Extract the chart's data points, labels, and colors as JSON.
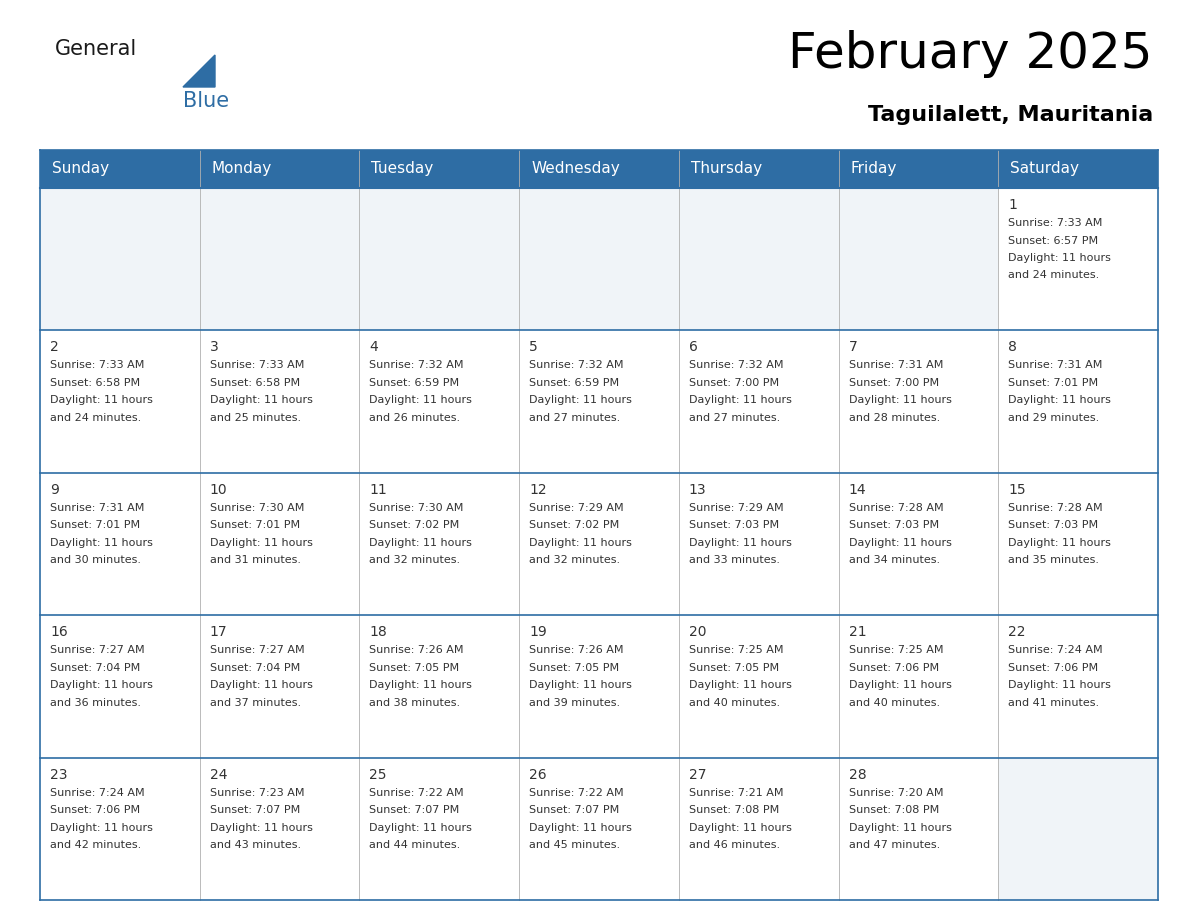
{
  "title": "February 2025",
  "subtitle": "Taguilalett, Mauritania",
  "header_bg_color": "#2e6da4",
  "header_text_color": "#ffffff",
  "cell_bg_white": "#ffffff",
  "cell_bg_light": "#f0f4f8",
  "border_color": "#2e6da4",
  "grid_color": "#b0b0b0",
  "text_color": "#333333",
  "days_of_week": [
    "Sunday",
    "Monday",
    "Tuesday",
    "Wednesday",
    "Thursday",
    "Friday",
    "Saturday"
  ],
  "logo_general_color": "#1a1a1a",
  "logo_blue_color": "#2e6da4",
  "calendar_data": [
    [
      null,
      null,
      null,
      null,
      null,
      null,
      {
        "day": "1",
        "sunrise": "7:33 AM",
        "sunset": "6:57 PM",
        "daylight_line1": "11 hours",
        "daylight_line2": "and 24 minutes."
      }
    ],
    [
      {
        "day": "2",
        "sunrise": "7:33 AM",
        "sunset": "6:58 PM",
        "daylight_line1": "11 hours",
        "daylight_line2": "and 24 minutes."
      },
      {
        "day": "3",
        "sunrise": "7:33 AM",
        "sunset": "6:58 PM",
        "daylight_line1": "11 hours",
        "daylight_line2": "and 25 minutes."
      },
      {
        "day": "4",
        "sunrise": "7:32 AM",
        "sunset": "6:59 PM",
        "daylight_line1": "11 hours",
        "daylight_line2": "and 26 minutes."
      },
      {
        "day": "5",
        "sunrise": "7:32 AM",
        "sunset": "6:59 PM",
        "daylight_line1": "11 hours",
        "daylight_line2": "and 27 minutes."
      },
      {
        "day": "6",
        "sunrise": "7:32 AM",
        "sunset": "7:00 PM",
        "daylight_line1": "11 hours",
        "daylight_line2": "and 27 minutes."
      },
      {
        "day": "7",
        "sunrise": "7:31 AM",
        "sunset": "7:00 PM",
        "daylight_line1": "11 hours",
        "daylight_line2": "and 28 minutes."
      },
      {
        "day": "8",
        "sunrise": "7:31 AM",
        "sunset": "7:01 PM",
        "daylight_line1": "11 hours",
        "daylight_line2": "and 29 minutes."
      }
    ],
    [
      {
        "day": "9",
        "sunrise": "7:31 AM",
        "sunset": "7:01 PM",
        "daylight_line1": "11 hours",
        "daylight_line2": "and 30 minutes."
      },
      {
        "day": "10",
        "sunrise": "7:30 AM",
        "sunset": "7:01 PM",
        "daylight_line1": "11 hours",
        "daylight_line2": "and 31 minutes."
      },
      {
        "day": "11",
        "sunrise": "7:30 AM",
        "sunset": "7:02 PM",
        "daylight_line1": "11 hours",
        "daylight_line2": "and 32 minutes."
      },
      {
        "day": "12",
        "sunrise": "7:29 AM",
        "sunset": "7:02 PM",
        "daylight_line1": "11 hours",
        "daylight_line2": "and 32 minutes."
      },
      {
        "day": "13",
        "sunrise": "7:29 AM",
        "sunset": "7:03 PM",
        "daylight_line1": "11 hours",
        "daylight_line2": "and 33 minutes."
      },
      {
        "day": "14",
        "sunrise": "7:28 AM",
        "sunset": "7:03 PM",
        "daylight_line1": "11 hours",
        "daylight_line2": "and 34 minutes."
      },
      {
        "day": "15",
        "sunrise": "7:28 AM",
        "sunset": "7:03 PM",
        "daylight_line1": "11 hours",
        "daylight_line2": "and 35 minutes."
      }
    ],
    [
      {
        "day": "16",
        "sunrise": "7:27 AM",
        "sunset": "7:04 PM",
        "daylight_line1": "11 hours",
        "daylight_line2": "and 36 minutes."
      },
      {
        "day": "17",
        "sunrise": "7:27 AM",
        "sunset": "7:04 PM",
        "daylight_line1": "11 hours",
        "daylight_line2": "and 37 minutes."
      },
      {
        "day": "18",
        "sunrise": "7:26 AM",
        "sunset": "7:05 PM",
        "daylight_line1": "11 hours",
        "daylight_line2": "and 38 minutes."
      },
      {
        "day": "19",
        "sunrise": "7:26 AM",
        "sunset": "7:05 PM",
        "daylight_line1": "11 hours",
        "daylight_line2": "and 39 minutes."
      },
      {
        "day": "20",
        "sunrise": "7:25 AM",
        "sunset": "7:05 PM",
        "daylight_line1": "11 hours",
        "daylight_line2": "and 40 minutes."
      },
      {
        "day": "21",
        "sunrise": "7:25 AM",
        "sunset": "7:06 PM",
        "daylight_line1": "11 hours",
        "daylight_line2": "and 40 minutes."
      },
      {
        "day": "22",
        "sunrise": "7:24 AM",
        "sunset": "7:06 PM",
        "daylight_line1": "11 hours",
        "daylight_line2": "and 41 minutes."
      }
    ],
    [
      {
        "day": "23",
        "sunrise": "7:24 AM",
        "sunset": "7:06 PM",
        "daylight_line1": "11 hours",
        "daylight_line2": "and 42 minutes."
      },
      {
        "day": "24",
        "sunrise": "7:23 AM",
        "sunset": "7:07 PM",
        "daylight_line1": "11 hours",
        "daylight_line2": "and 43 minutes."
      },
      {
        "day": "25",
        "sunrise": "7:22 AM",
        "sunset": "7:07 PM",
        "daylight_line1": "11 hours",
        "daylight_line2": "and 44 minutes."
      },
      {
        "day": "26",
        "sunrise": "7:22 AM",
        "sunset": "7:07 PM",
        "daylight_line1": "11 hours",
        "daylight_line2": "and 45 minutes."
      },
      {
        "day": "27",
        "sunrise": "7:21 AM",
        "sunset": "7:08 PM",
        "daylight_line1": "11 hours",
        "daylight_line2": "and 46 minutes."
      },
      {
        "day": "28",
        "sunrise": "7:20 AM",
        "sunset": "7:08 PM",
        "daylight_line1": "11 hours",
        "daylight_line2": "and 47 minutes."
      },
      null
    ]
  ]
}
